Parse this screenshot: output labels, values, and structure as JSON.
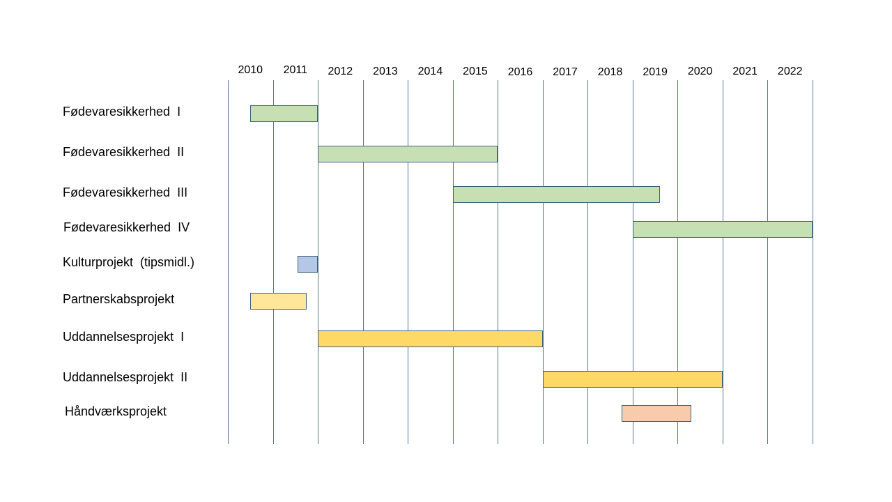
{
  "chart_data": {
    "type": "gantt",
    "title": "",
    "xlabel": "",
    "ylabel": "",
    "x_unit": "year",
    "xlim": [
      2009.5,
      2022.5
    ],
    "years": [
      "2010",
      "2011",
      "2012",
      "2013",
      "2014",
      "2015",
      "2016",
      "2017",
      "2018",
      "2019",
      "2020",
      "2021",
      "2022"
    ],
    "gridlines": [
      2009.5,
      2010.5,
      2011.5,
      2012.5,
      2013.5,
      2014.5,
      2015.5,
      2016.5,
      2017.5,
      2018.5,
      2019.5,
      2020.5,
      2021.5,
      2022.5
    ],
    "grid": true,
    "legend": false,
    "tasks": [
      {
        "label": "Fødevaresikkerhed  I",
        "start": 2010.0,
        "end": 2011.5,
        "color": "#c6e0b4"
      },
      {
        "label": "Fødevaresikkerhed  II",
        "start": 2011.5,
        "end": 2015.5,
        "color": "#c6e0b4"
      },
      {
        "label": "Fødevaresikkerhed  III",
        "start": 2014.5,
        "end": 2019.1,
        "color": "#c6e0b4"
      },
      {
        "label": "Fødevaresikkerhed  IV",
        "start": 2018.5,
        "end": 2022.5,
        "color": "#c6e0b4"
      },
      {
        "label": "Kulturprojekt  (tipsmidl.)",
        "start": 2011.05,
        "end": 2011.5,
        "color": "#b4c7e7"
      },
      {
        "label": "Partnerskabsprojekt",
        "start": 2010.0,
        "end": 2011.25,
        "color": "#ffe699"
      },
      {
        "label": "Uddannelsesprojekt  I",
        "start": 2011.5,
        "end": 2016.5,
        "color": "#ffd966"
      },
      {
        "label": "Uddannelsesprojekt  II",
        "start": 2016.5,
        "end": 2020.5,
        "color": "#ffd966"
      },
      {
        "label": "Håndværksprojekt",
        "start": 2018.25,
        "end": 2019.8,
        "color": "#f8cbad"
      }
    ]
  }
}
